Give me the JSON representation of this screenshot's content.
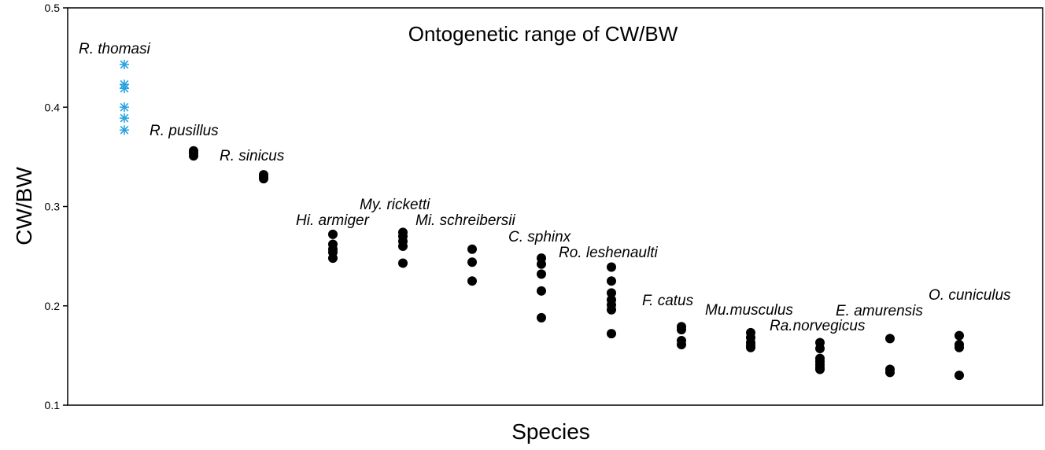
{
  "chart_data": {
    "type": "scatter",
    "title": "Ontogenetic range of CW/BW",
    "xlabel": "Species",
    "ylabel": "CW/BW",
    "ylim": [
      0.1,
      0.5
    ],
    "yticks": [
      "0.1",
      "0.2",
      "0.3",
      "0.4",
      "0.5"
    ],
    "grid": false,
    "highlight_color": "#29a3e0",
    "default_color": "#000000",
    "series": [
      {
        "name": "R. thomasi",
        "marker": "asterisk",
        "values": [
          0.443,
          0.423,
          0.419,
          0.4,
          0.389,
          0.377
        ]
      },
      {
        "name": "R. pusillus",
        "marker": "dot",
        "values": [
          0.356,
          0.354,
          0.351
        ]
      },
      {
        "name": "R. sinicus",
        "marker": "dot",
        "values": [
          0.332,
          0.33,
          0.328
        ]
      },
      {
        "name": "Hi. armiger",
        "marker": "dot",
        "values": [
          0.272,
          0.262,
          0.257,
          0.254,
          0.248
        ]
      },
      {
        "name": "My. ricketti",
        "marker": "dot",
        "values": [
          0.274,
          0.27,
          0.265,
          0.26,
          0.243
        ]
      },
      {
        "name": "Mi. schreibersii",
        "marker": "dot",
        "values": [
          0.257,
          0.244,
          0.225
        ]
      },
      {
        "name": "C. sphinx",
        "marker": "dot",
        "values": [
          0.248,
          0.242,
          0.232,
          0.215,
          0.188
        ]
      },
      {
        "name": "Ro. leshenaulti",
        "marker": "dot",
        "values": [
          0.239,
          0.225,
          0.213,
          0.206,
          0.201,
          0.196,
          0.172
        ]
      },
      {
        "name": "F. catus",
        "marker": "dot",
        "values": [
          0.179,
          0.176,
          0.165,
          0.161
        ]
      },
      {
        "name": "Mu.musculus",
        "marker": "dot",
        "values": [
          0.173,
          0.168,
          0.163,
          0.16,
          0.158
        ]
      },
      {
        "name": "Ra.norvegicus",
        "marker": "dot",
        "values": [
          0.163,
          0.157,
          0.147,
          0.144,
          0.141,
          0.138,
          0.136
        ]
      },
      {
        "name": "E. amurensis",
        "marker": "dot",
        "values": [
          0.167,
          0.136,
          0.133
        ]
      },
      {
        "name": "O. cuniculus",
        "marker": "dot",
        "values": [
          0.17,
          0.161,
          0.158,
          0.13
        ]
      }
    ]
  }
}
